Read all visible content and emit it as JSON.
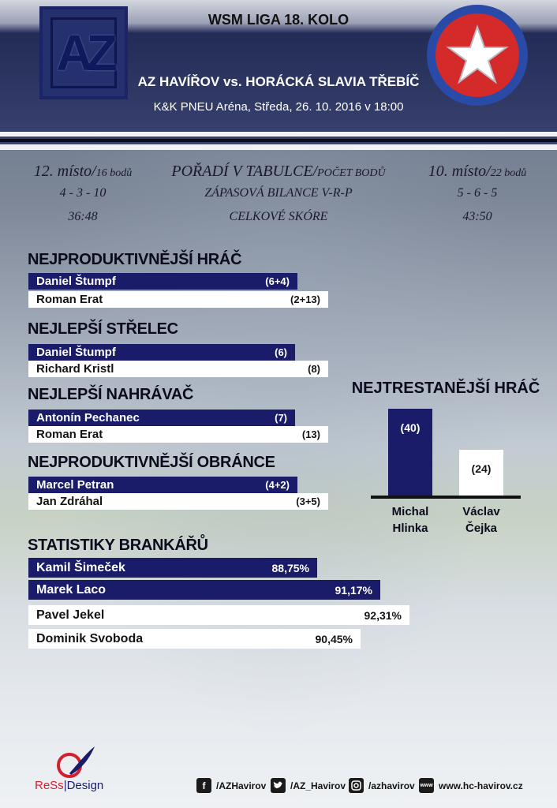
{
  "header": {
    "round_title": "WSM LIGA 18. KOLO",
    "match_title": "AZ HAVÍŘOV vs. HORÁCKÁ SLAVIA TŘEBÍČ",
    "venue": "K&K PNEU Aréna, Středa, 26. 10. 2016 v 18:00",
    "home_logo_text": "AZ"
  },
  "standing": {
    "home": {
      "place": "12. místo/",
      "points": "16 bodů",
      "record": "4 - 3 - 10",
      "score": "36:48"
    },
    "labels": {
      "place_main": "POŘADÍ V TABULCE/",
      "place_sub": "POČET BODŮ",
      "record": "ZÁPASOVÁ BILANCE V-R-P",
      "score": "CELKOVÉ SKÓRE"
    },
    "away": {
      "place": "10. místo/",
      "points": "22 bodů",
      "record": "5 - 6 - 5",
      "score": "43:50"
    }
  },
  "sections": {
    "productive": {
      "title": "NEJPRODUKTIVNĚJŠÍ HRÁČ",
      "home": {
        "name": "Daniel Štumpf",
        "value": "(6+4)"
      },
      "away": {
        "name": "Roman Erat",
        "value": "(2+13)"
      }
    },
    "shooter": {
      "title": "NEJLEPŠÍ STŘELEC",
      "home": {
        "name": "Daniel Štumpf",
        "value": "(6)"
      },
      "away": {
        "name": "Richard Kristl",
        "value": "(8)"
      }
    },
    "passer": {
      "title": "NEJLEPŠÍ NAHRÁVAČ",
      "home": {
        "name": "Antonín Pechanec",
        "value": "(7)"
      },
      "away": {
        "name": "Roman Erat",
        "value": "(13)"
      }
    },
    "defender": {
      "title": "NEJPRODUKTIVNĚJŠÍ OBRÁNCE",
      "home": {
        "name": "Marcel Petran",
        "value": "(4+2)"
      },
      "away": {
        "name": "Jan Zdráhal",
        "value": "(3+5)"
      }
    }
  },
  "goalies": {
    "title": "STATISTIKY BRANKÁŘŮ",
    "rows": [
      {
        "name": "Kamil Šimeček",
        "value": "88,75%",
        "team": "home"
      },
      {
        "name": "Marek Laco",
        "value": "91,17%",
        "team": "home"
      },
      {
        "name": "Pavel Jekel",
        "value": "92,31%",
        "team": "away"
      },
      {
        "name": "Dominik Svoboda",
        "value": "90,45%",
        "team": "away"
      }
    ]
  },
  "penalties": {
    "title": "NEJTRESTANĚJŠÍ HRÁČ",
    "home": {
      "name_line1": "Michal",
      "name_line2": "Hlinka",
      "value": "(40)",
      "minutes": 40
    },
    "away": {
      "name_line1": "Václav",
      "name_line2": "Čejka",
      "value": "(24)",
      "minutes": 24
    }
  },
  "footer": {
    "designer_part1": "ReSs",
    "designer_part2": "|Design",
    "facebook": "/AZHavirov",
    "twitter": "/AZ_Havirov",
    "instagram": "/azhavirov",
    "website": "www.hc-havirov.cz"
  },
  "colors": {
    "home": "#1a1c6a",
    "away": "#ffffff",
    "header": "#2a325e"
  }
}
